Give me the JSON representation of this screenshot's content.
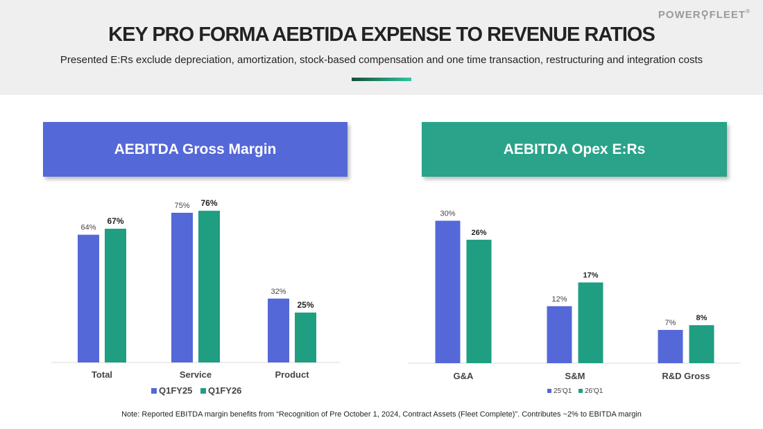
{
  "header": {
    "logo_text": "POWER",
    "logo_text_2": "FLEET",
    "logo_mark": "®",
    "title": "KEY PRO FORMA AEBTIDA EXPENSE TO REVENUE RATIOS",
    "subtitle": "Presented E:Rs exclude depreciation, amortization, stock-based compensation and one time transaction, restructuring and integration costs"
  },
  "panels": {
    "left_title": "AEBITDA Gross Margin",
    "right_title": "AEBITDA Opex E:Rs"
  },
  "colors": {
    "series_a": "#5568d8",
    "series_b": "#1f9e82"
  },
  "chart_data": [
    {
      "type": "bar",
      "categories": [
        "Total",
        "Service",
        "Product"
      ],
      "series": [
        {
          "name": "Q1FY25",
          "values": [
            64,
            75,
            32
          ],
          "labels": [
            "64%",
            "75%",
            "32%"
          ]
        },
        {
          "name": "Q1FY26",
          "values": [
            67,
            76,
            25
          ],
          "labels": [
            "67%",
            "76%",
            "25%"
          ]
        }
      ],
      "legend": "bottom",
      "ylim": [
        0,
        80
      ]
    },
    {
      "type": "bar",
      "categories": [
        "G&A",
        "S&M",
        "R&D Gross"
      ],
      "series": [
        {
          "name": "25'Q1",
          "values": [
            30,
            12,
            7
          ],
          "labels": [
            "30%",
            "12%",
            "7%"
          ]
        },
        {
          "name": "26'Q1",
          "values": [
            26,
            17,
            8
          ],
          "labels": [
            "26%",
            "17%",
            "8%"
          ]
        }
      ],
      "legend": "bottom",
      "ylim": [
        0,
        32
      ]
    }
  ],
  "footer": {
    "note": "Note: Reported EBITDA margin benefits from “Recognition of Pre October 1, 2024, Contract Assets (Fleet Complete)”. Contributes ~2% to EBITDA margin"
  }
}
